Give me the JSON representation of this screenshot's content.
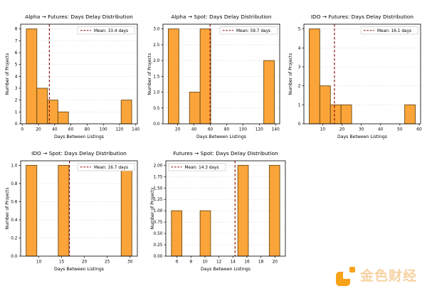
{
  "colors": {
    "background": "#ffffff",
    "bar_fill": "#faa43a",
    "bar_edge": "#6d4a10",
    "mean_line": "#8b0000",
    "grid": "#c9c9c9",
    "axis": "#000000",
    "legend_border": "#cccccc",
    "text": "#000000"
  },
  "watermark": {
    "text": "金色财经",
    "logo_color": "#f8a21a",
    "text_color": "#f6d2a2"
  },
  "chart_data": [
    {
      "type": "bar",
      "title": "Alpha → Futures: Days Delay Distribution",
      "xlabel": "Days Between Listings",
      "ylabel": "Number of Projects",
      "xlim": [
        -2,
        142
      ],
      "ylim": [
        0,
        8.4
      ],
      "xticks": [
        0,
        20,
        40,
        60,
        80,
        100,
        120,
        140
      ],
      "yticks": [
        0,
        1,
        2,
        3,
        4,
        5,
        6,
        7,
        8
      ],
      "ytick_labels": [
        "0",
        "1",
        "2",
        "3",
        "4",
        "5",
        "6",
        "7",
        "8"
      ],
      "bars": [
        {
          "x0": 5,
          "x1": 18,
          "h": 8
        },
        {
          "x0": 18,
          "x1": 31,
          "h": 3
        },
        {
          "x0": 31,
          "x1": 44,
          "h": 2
        },
        {
          "x0": 44,
          "x1": 57,
          "h": 1
        },
        {
          "x0": 122,
          "x1": 135,
          "h": 2
        }
      ],
      "mean": 33.4,
      "legend_label": "Mean: 33.4 days",
      "legend_pos": "ne",
      "grid": "horizontal-dotted"
    },
    {
      "type": "bar",
      "title": "Alpha → Spot: Days Delay Distribution",
      "xlabel": "Days Between Listings",
      "ylabel": "Number of Projects",
      "xlim": [
        2,
        145
      ],
      "ylim": [
        0,
        3.15
      ],
      "xticks": [
        20,
        40,
        60,
        80,
        100,
        120,
        140
      ],
      "yticks": [
        0,
        0.5,
        1,
        1.5,
        2,
        2.5,
        3
      ],
      "ytick_labels": [
        "0.0",
        "0.5",
        "1.0",
        "1.5",
        "2.0",
        "2.5",
        "3.0"
      ],
      "bars": [
        {
          "x0": 8.5,
          "x1": 21.5,
          "h": 3
        },
        {
          "x0": 34.5,
          "x1": 47.5,
          "h": 1
        },
        {
          "x0": 47.5,
          "x1": 60.5,
          "h": 3
        },
        {
          "x0": 125.5,
          "x1": 138.5,
          "h": 2
        }
      ],
      "mean": 59.7,
      "legend_label": "Mean: 59.7 days",
      "legend_pos": "ne",
      "grid": "horizontal-dotted"
    },
    {
      "type": "bar",
      "title": "IDO → Futures: Days Delay Distribution",
      "xlabel": "Days Between Listings",
      "ylabel": "Number of Projects",
      "xlim": [
        0.25,
        60.75
      ],
      "ylim": [
        0,
        5.25
      ],
      "xticks": [
        10,
        20,
        30,
        40,
        50,
        60
      ],
      "yticks": [
        0,
        1,
        2,
        3,
        4,
        5
      ],
      "ytick_labels": [
        "0",
        "1",
        "2",
        "3",
        "4",
        "5"
      ],
      "bars": [
        {
          "x0": 3,
          "x1": 8.5,
          "h": 5
        },
        {
          "x0": 8.5,
          "x1": 14,
          "h": 2
        },
        {
          "x0": 14,
          "x1": 19.5,
          "h": 1
        },
        {
          "x0": 19.5,
          "x1": 25,
          "h": 1
        },
        {
          "x0": 52.5,
          "x1": 58,
          "h": 1
        }
      ],
      "mean": 16.1,
      "legend_label": "Mean: 16.1 days",
      "legend_pos": "ne",
      "grid": "horizontal-dotted"
    },
    {
      "type": "bar",
      "title": "IDO → Spot: Days Delay Distribution",
      "xlabel": "Days Between Listings",
      "ylabel": "Number of Projects",
      "xlim": [
        6.0,
        31.6
      ],
      "ylim": [
        0,
        1.05
      ],
      "xticks": [
        10,
        15,
        20,
        25,
        30
      ],
      "yticks": [
        0,
        0.2,
        0.4,
        0.6,
        0.8,
        1.0
      ],
      "ytick_labels": [
        "0.0",
        "0.2",
        "0.4",
        "0.6",
        "0.8",
        "1.0"
      ],
      "bars": [
        {
          "x0": 7.2,
          "x1": 9.55,
          "h": 1
        },
        {
          "x0": 14.25,
          "x1": 16.6,
          "h": 1
        },
        {
          "x0": 28.05,
          "x1": 30.4,
          "h": 1
        }
      ],
      "mean": 16.7,
      "legend_label": "Mean: 16.7 days",
      "legend_pos": "ne",
      "grid": "horizontal-dotted"
    },
    {
      "type": "bar",
      "title": "Futures → Spot: Days Delay Distribution",
      "xlabel": "Days Between Listings",
      "ylabel": "Number of Projects",
      "xlim": [
        4.4,
        21.5
      ],
      "ylim": [
        0,
        2.1
      ],
      "xticks": [
        6,
        8,
        10,
        12,
        14,
        16,
        18,
        20
      ],
      "yticks": [
        0,
        0.25,
        0.5,
        0.75,
        1,
        1.25,
        1.5,
        1.75,
        2
      ],
      "ytick_labels": [
        "0.00",
        "0.25",
        "0.50",
        "0.75",
        "1.00",
        "1.25",
        "1.50",
        "1.75",
        "2.00"
      ],
      "bars": [
        {
          "x0": 5.2,
          "x1": 6.7,
          "h": 1
        },
        {
          "x0": 9.3,
          "x1": 10.8,
          "h": 1
        },
        {
          "x0": 14.7,
          "x1": 16.2,
          "h": 2
        },
        {
          "x0": 19.2,
          "x1": 20.7,
          "h": 2
        }
      ],
      "mean": 14.3,
      "legend_label": "Mean: 14.3 days",
      "legend_pos": "nw",
      "grid": "horizontal-dotted"
    }
  ]
}
